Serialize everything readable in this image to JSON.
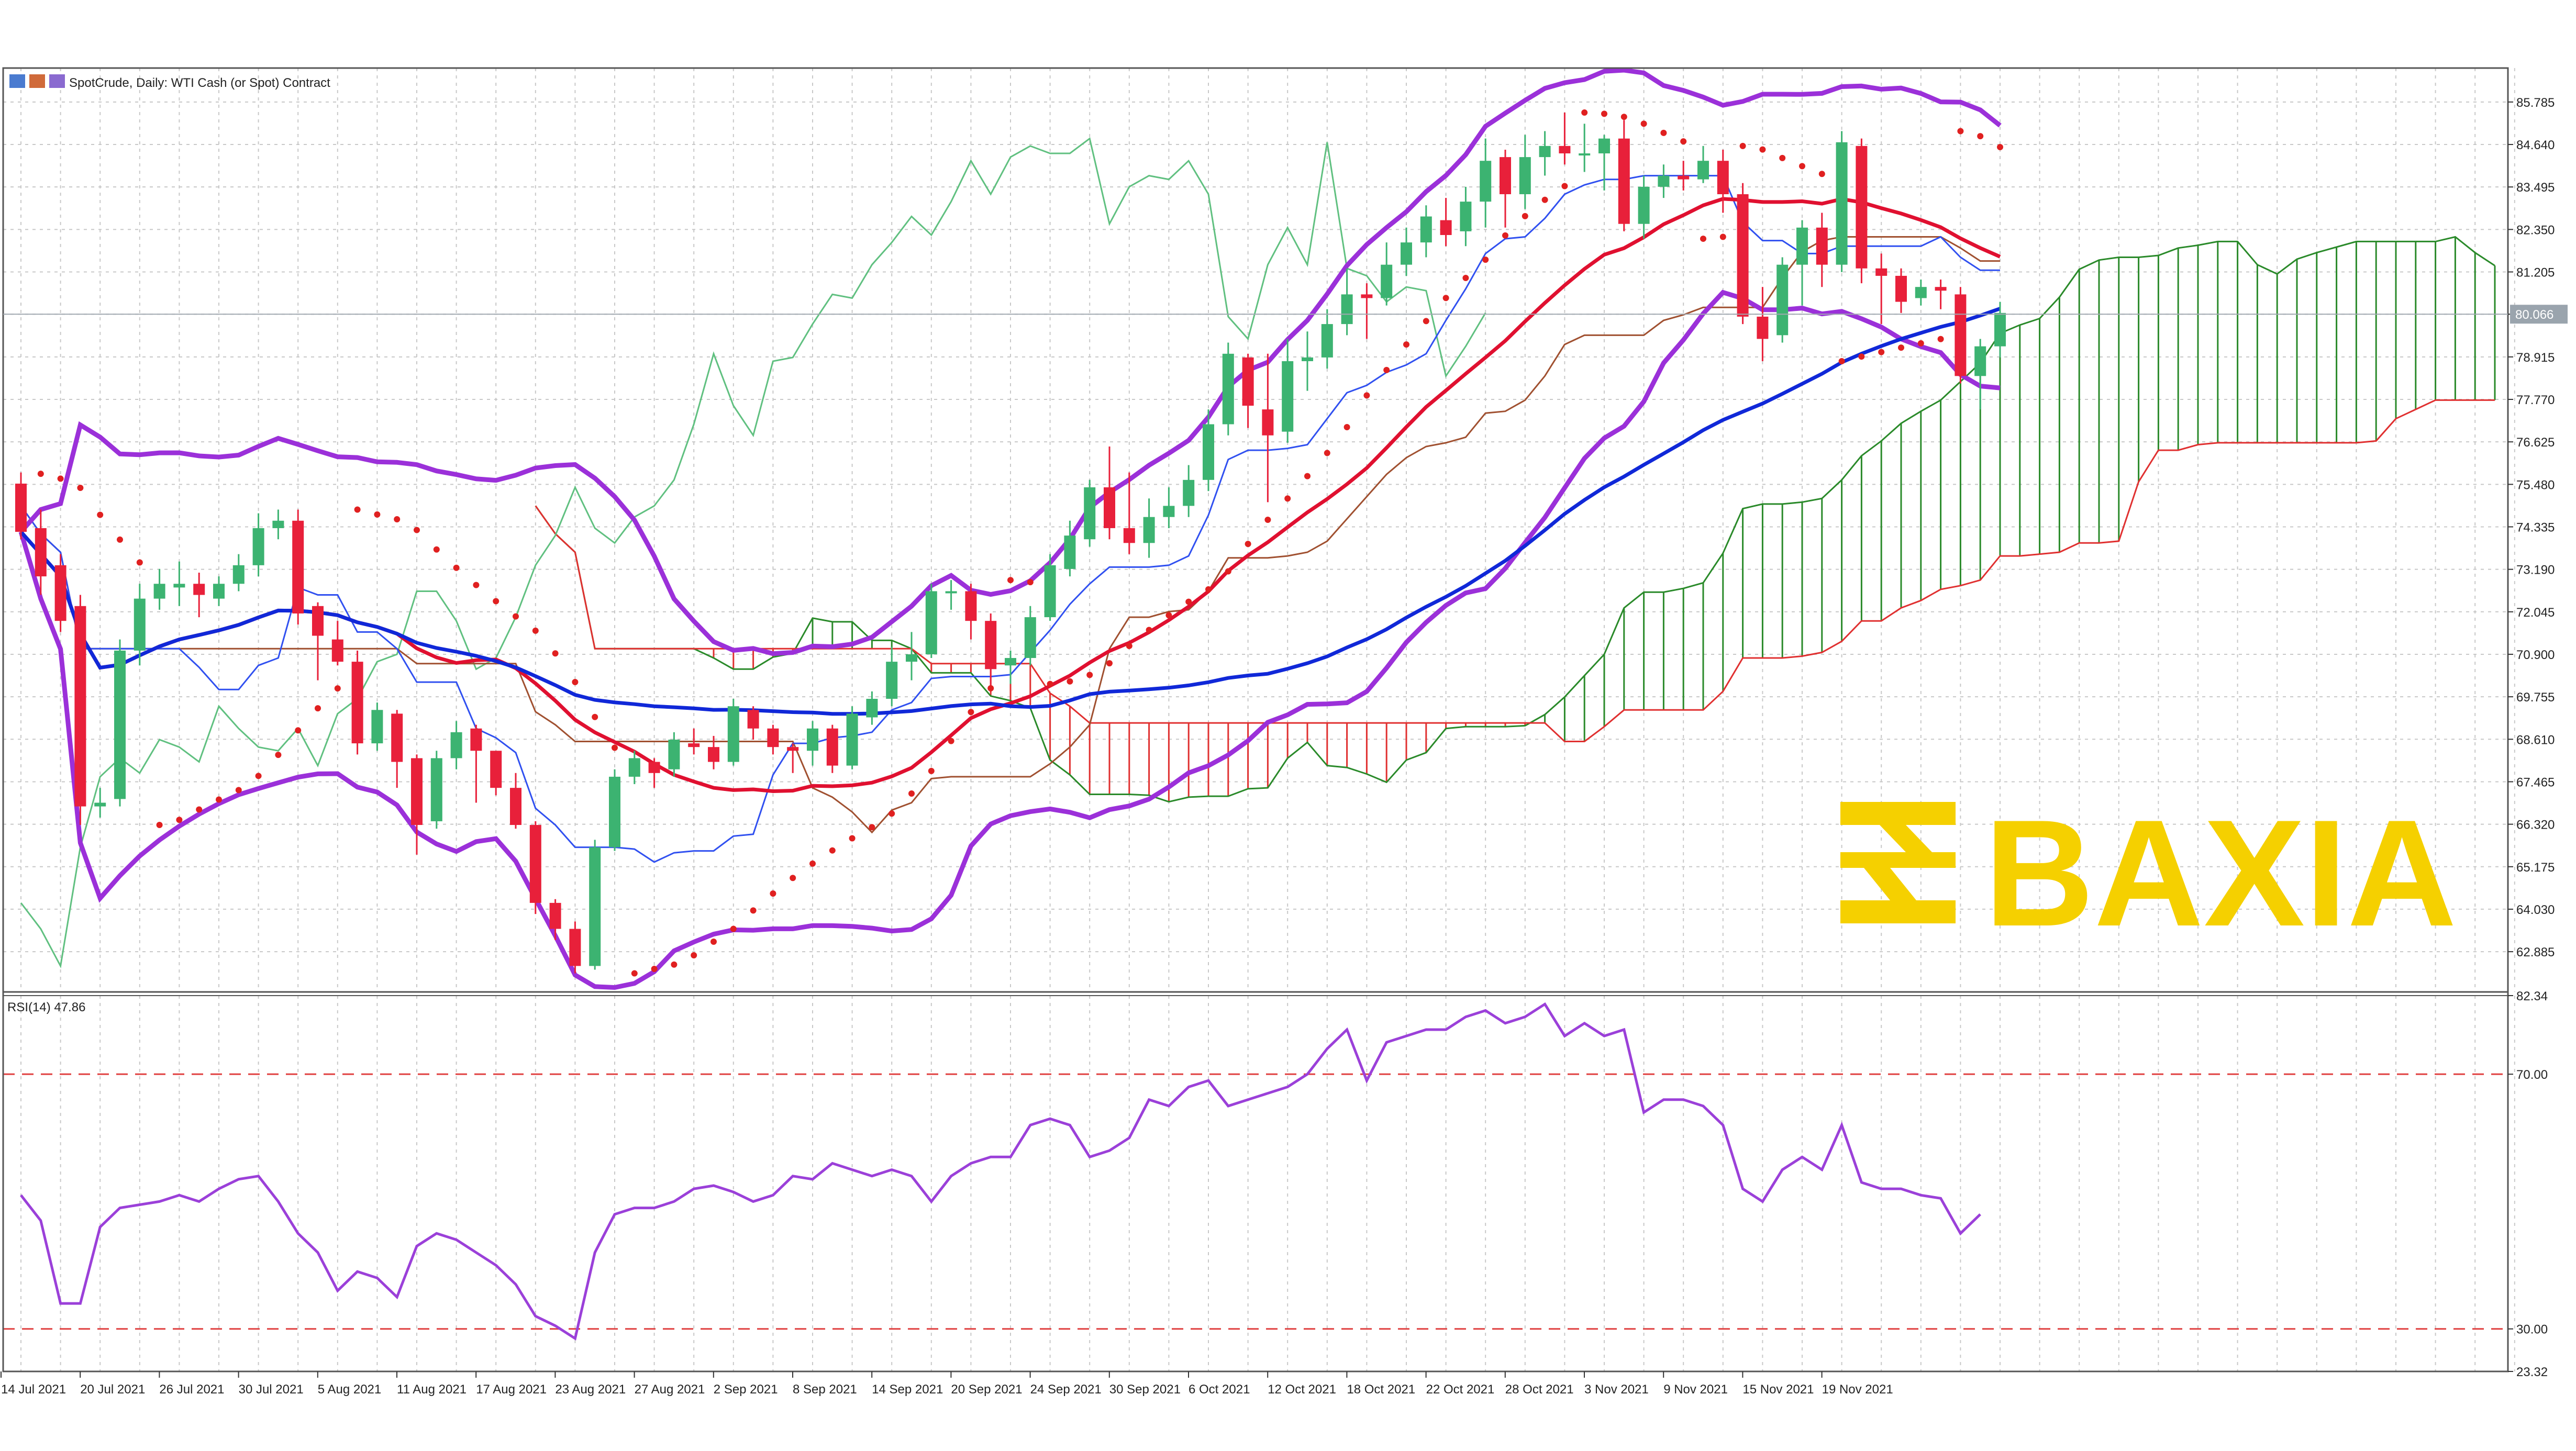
{
  "header": {
    "title": "SpotCrude, Daily:  WTI Cash (or Spot) Contract",
    "rsi_label": "RSI(14) 47.86"
  },
  "watermark": {
    "text": "BAXIA",
    "color": "#f5d000"
  },
  "colors": {
    "bull": "#3cb371",
    "bear": "#e8203a",
    "bollinger": "#9b30d9",
    "sma_red": "#e01030",
    "sma_blue": "#1028d8",
    "tenkan": "#3050f0",
    "kijun": "#a05030",
    "chikou": "#60c080",
    "sar": "#e02020",
    "cloud_up": "#2a8a2a",
    "cloud_down": "#e03030",
    "rsi": "#9b40d9",
    "level": "#e04040",
    "grid": "#c8c8c8"
  },
  "chart_data": [
    {
      "type": "candlestick",
      "title": "SpotCrude, Daily:  WTI Cash (or Spot) Contract",
      "y_ticks": [
        "85.785",
        "84.640",
        "83.495",
        "82.350",
        "81.205",
        "80.066",
        "78.915",
        "77.770",
        "76.625",
        "75.480",
        "74.335",
        "73.190",
        "72.045",
        "70.900",
        "69.755",
        "68.610",
        "67.465",
        "66.320",
        "65.175",
        "64.030",
        "62.885"
      ],
      "ylim": [
        61.8,
        86.7
      ],
      "current_price": "80.066",
      "x_ticks": [
        "14 Jul 2021",
        "20 Jul 2021",
        "26 Jul 2021",
        "30 Jul 2021",
        "5 Aug 2021",
        "11 Aug 2021",
        "17 Aug 2021",
        "23 Aug 2021",
        "27 Aug 2021",
        "2 Sep 2021",
        "8 Sep 2021",
        "14 Sep 2021",
        "20 Sep 2021",
        "24 Sep 2021",
        "30 Sep 2021",
        "6 Oct 2021",
        "12 Oct 2021",
        "18 Oct 2021",
        "22 Oct 2021",
        "28 Oct 2021",
        "3 Nov 2021",
        "9 Nov 2021",
        "15 Nov 2021",
        "19 Nov 2021"
      ],
      "candles": [
        [
          75.5,
          74.2,
          75.8,
          74.0
        ],
        [
          74.3,
          73.0,
          74.8,
          72.5
        ],
        [
          73.3,
          71.8,
          73.6,
          71.5
        ],
        [
          72.2,
          66.8,
          72.5,
          66.3
        ],
        [
          66.8,
          66.9,
          67.3,
          66.5
        ],
        [
          67.0,
          71.0,
          71.3,
          66.8
        ],
        [
          71.0,
          72.4,
          72.8,
          70.6
        ],
        [
          72.4,
          72.8,
          73.2,
          72.1
        ],
        [
          72.7,
          72.8,
          73.4,
          72.2
        ],
        [
          72.8,
          72.5,
          73.1,
          71.9
        ],
        [
          72.4,
          72.8,
          73.0,
          72.2
        ],
        [
          72.8,
          73.3,
          73.6,
          72.6
        ],
        [
          73.3,
          74.3,
          74.7,
          73.0
        ],
        [
          74.3,
          74.5,
          74.8,
          74.0
        ],
        [
          74.5,
          72.0,
          74.8,
          71.7
        ],
        [
          72.2,
          71.4,
          72.3,
          70.2
        ],
        [
          71.3,
          70.7,
          71.8,
          70.6
        ],
        [
          70.7,
          68.5,
          71.0,
          68.2
        ],
        [
          68.5,
          69.4,
          69.6,
          68.3
        ],
        [
          69.3,
          68.0,
          69.4,
          67.3
        ],
        [
          68.1,
          66.3,
          68.2,
          65.5
        ],
        [
          66.4,
          68.1,
          68.3,
          66.2
        ],
        [
          68.1,
          68.8,
          69.1,
          67.8
        ],
        [
          68.9,
          68.3,
          69.0,
          66.9
        ],
        [
          68.3,
          67.3,
          68.3,
          67.1
        ],
        [
          67.3,
          66.3,
          67.7,
          66.2
        ],
        [
          66.3,
          64.2,
          66.4,
          63.9
        ],
        [
          64.2,
          63.5,
          64.3,
          63.2
        ],
        [
          63.5,
          62.5,
          63.7,
          62.3
        ],
        [
          62.5,
          65.7,
          65.9,
          62.4
        ],
        [
          65.7,
          67.6,
          67.8,
          65.6
        ],
        [
          67.6,
          68.1,
          68.3,
          67.4
        ],
        [
          68.0,
          67.7,
          68.1,
          67.3
        ],
        [
          67.8,
          68.6,
          68.8,
          67.6
        ],
        [
          68.5,
          68.4,
          68.9,
          68.2
        ],
        [
          68.4,
          68.0,
          68.7,
          67.8
        ],
        [
          68.0,
          69.5,
          69.7,
          67.9
        ],
        [
          69.4,
          68.9,
          69.5,
          68.6
        ],
        [
          68.9,
          68.4,
          69.0,
          68.2
        ],
        [
          68.4,
          68.3,
          68.5,
          67.7
        ],
        [
          68.3,
          68.9,
          69.1,
          67.9
        ],
        [
          68.9,
          67.9,
          69.0,
          67.7
        ],
        [
          67.9,
          69.3,
          69.5,
          67.8
        ],
        [
          69.2,
          69.7,
          69.9,
          69.0
        ],
        [
          69.7,
          70.7,
          71.1,
          69.5
        ],
        [
          70.7,
          70.9,
          71.5,
          70.2
        ],
        [
          70.9,
          72.6,
          72.8,
          70.8
        ],
        [
          72.6,
          72.6,
          72.9,
          72.1
        ],
        [
          72.6,
          71.8,
          72.8,
          71.3
        ],
        [
          71.8,
          70.5,
          72.0,
          70.0
        ],
        [
          70.6,
          70.8,
          71.0,
          70.1
        ],
        [
          70.8,
          71.9,
          72.2,
          70.6
        ],
        [
          71.9,
          73.3,
          73.6,
          71.8
        ],
        [
          73.2,
          74.1,
          74.5,
          73.0
        ],
        [
          74.0,
          75.4,
          75.6,
          73.8
        ],
        [
          75.4,
          74.3,
          76.5,
          74.0
        ],
        [
          74.3,
          73.9,
          75.8,
          73.6
        ],
        [
          73.9,
          74.6,
          75.1,
          73.5
        ],
        [
          74.6,
          74.9,
          75.4,
          74.3
        ],
        [
          74.9,
          75.6,
          76.0,
          74.6
        ],
        [
          75.6,
          77.1,
          77.5,
          75.3
        ],
        [
          77.1,
          79.0,
          79.3,
          76.8
        ],
        [
          78.9,
          77.6,
          79.0,
          77.0
        ],
        [
          77.5,
          76.8,
          79.0,
          75.0
        ],
        [
          76.9,
          78.8,
          79.4,
          76.6
        ],
        [
          78.8,
          78.9,
          79.6,
          78.0
        ],
        [
          78.9,
          79.8,
          80.2,
          78.6
        ],
        [
          79.8,
          80.6,
          81.3,
          79.5
        ],
        [
          80.6,
          80.5,
          80.9,
          79.4
        ],
        [
          80.5,
          81.4,
          82.0,
          80.3
        ],
        [
          81.4,
          82.0,
          82.4,
          81.1
        ],
        [
          82.0,
          82.7,
          83.0,
          81.6
        ],
        [
          82.6,
          82.2,
          83.2,
          81.9
        ],
        [
          82.3,
          83.1,
          83.5,
          81.9
        ],
        [
          83.1,
          84.2,
          84.8,
          82.4
        ],
        [
          84.3,
          83.3,
          84.5,
          82.4
        ],
        [
          83.3,
          84.3,
          84.9,
          82.9
        ],
        [
          84.3,
          84.6,
          85.0,
          83.8
        ],
        [
          84.6,
          84.4,
          85.5,
          84.1
        ],
        [
          84.4,
          84.4,
          85.2,
          83.9
        ],
        [
          84.4,
          84.8,
          84.9,
          83.4
        ],
        [
          84.8,
          82.5,
          85.3,
          82.3
        ],
        [
          82.5,
          83.5,
          83.8,
          82.1
        ],
        [
          83.5,
          83.8,
          84.1,
          83.2
        ],
        [
          83.8,
          83.7,
          84.2,
          83.4
        ],
        [
          83.7,
          84.2,
          84.6,
          83.6
        ],
        [
          84.2,
          83.3,
          84.5,
          82.8
        ],
        [
          83.3,
          80.0,
          83.6,
          79.8
        ],
        [
          80.0,
          79.4,
          80.8,
          78.8
        ],
        [
          79.5,
          81.4,
          81.6,
          79.3
        ],
        [
          81.4,
          82.4,
          82.6,
          80.3
        ],
        [
          82.4,
          81.4,
          82.8,
          80.8
        ],
        [
          81.4,
          84.7,
          85.0,
          81.2
        ],
        [
          84.6,
          81.3,
          84.8,
          80.9
        ],
        [
          81.3,
          81.1,
          81.7,
          79.8
        ],
        [
          81.1,
          80.4,
          81.3,
          80.1
        ],
        [
          80.5,
          80.8,
          81.0,
          80.3
        ],
        [
          80.8,
          80.7,
          81.0,
          80.2
        ],
        [
          80.6,
          78.4,
          80.8,
          78.2
        ],
        [
          78.4,
          79.2,
          79.4,
          77.5
        ],
        [
          79.2,
          80.1,
          80.4,
          78.9
        ]
      ]
    },
    {
      "type": "line",
      "title": "RSI(14) 47.86",
      "y_ticks": [
        "82.34",
        "70.00",
        "30.00",
        "23.32"
      ],
      "levels": [
        70,
        30
      ],
      "ylim": [
        23.32,
        82.34
      ],
      "values": [
        51,
        47,
        34,
        34,
        46,
        49,
        49.5,
        50,
        51,
        50,
        52,
        53.5,
        54,
        50,
        45,
        42,
        36,
        39,
        38,
        35,
        43,
        45,
        44,
        42,
        40,
        37,
        32,
        30.5,
        28.5,
        42,
        48,
        49,
        49,
        50,
        52,
        52.5,
        51.5,
        50,
        51,
        54,
        53.5,
        56,
        55,
        54,
        55,
        54,
        50,
        54,
        56,
        57,
        57,
        62,
        63,
        62,
        57,
        58,
        60,
        66,
        65,
        68,
        69,
        65,
        66,
        67,
        68,
        70,
        74,
        77,
        69,
        75,
        76,
        77,
        77,
        79,
        80,
        78,
        79,
        81,
        76,
        78,
        76,
        77,
        64,
        66,
        66,
        65,
        62,
        52,
        50,
        55,
        57,
        55,
        62,
        53,
        52,
        52,
        51,
        50.5,
        45,
        48
      ]
    }
  ]
}
